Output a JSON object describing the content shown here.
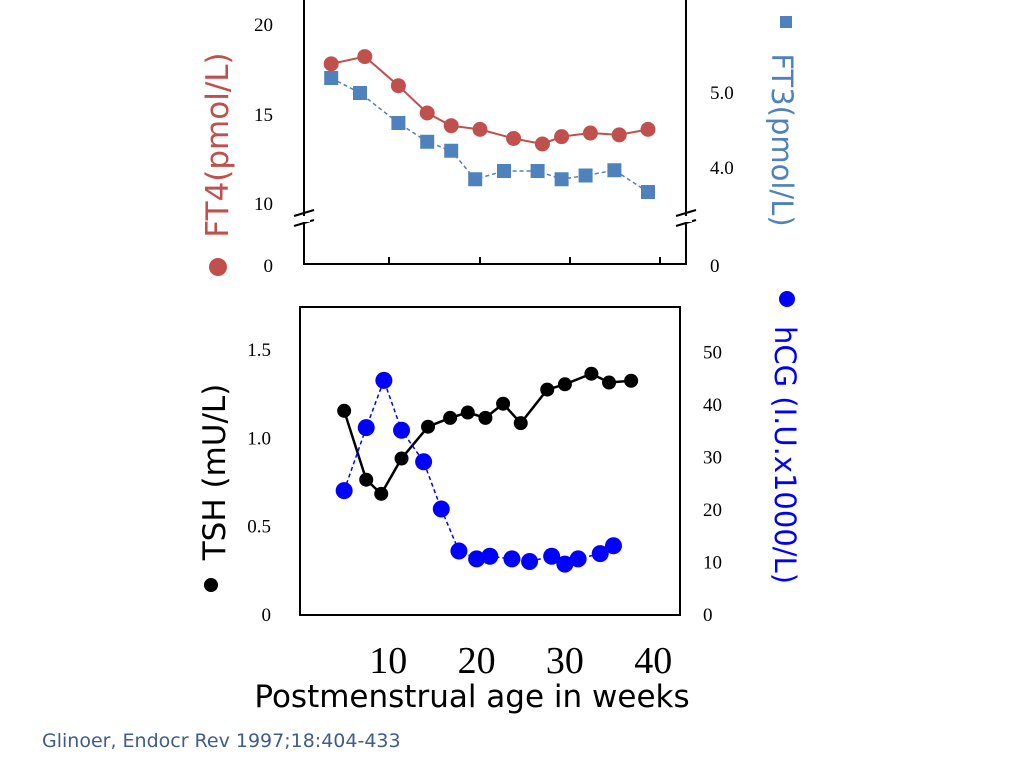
{
  "citation": "Glinoer, Endocr Rev 1997;18:404-433",
  "colors": {
    "ft4": "#c0504d",
    "ft3": "#4f81bd",
    "tsh": "#000000",
    "hcg": "#0000ff",
    "axis": "#000000",
    "citation": "#3f5c8c"
  },
  "chart_data": [
    {
      "type": "line",
      "panel": "top",
      "left_axis": {
        "label": "FT4(pmol/L)",
        "ticks": [
          "0",
          "10",
          "15",
          "20"
        ],
        "break": true
      },
      "right_axis": {
        "label": "FT3(pmol/L)",
        "ticks": [
          "0",
          "4.0",
          "5.0"
        ],
        "break": true
      },
      "series": [
        {
          "name": "FT4(pmol/L)",
          "marker": "circle",
          "line": "solid",
          "axis": "left",
          "x": [
            6,
            9.5,
            13,
            16,
            18.5,
            21.5,
            25,
            28,
            30,
            33,
            36,
            39
          ],
          "values": [
            17.7,
            18.1,
            16.5,
            15.0,
            14.3,
            14.1,
            13.6,
            13.3,
            13.7,
            13.9,
            13.8,
            14.1
          ]
        },
        {
          "name": "FT3(pmol/L)",
          "marker": "square",
          "line": "dashed",
          "axis": "right",
          "x": [
            6,
            9,
            13,
            16,
            18.5,
            21,
            24,
            27.5,
            30,
            32.5,
            35.5,
            39
          ],
          "values": [
            5.2,
            5.0,
            4.6,
            4.35,
            4.23,
            3.85,
            3.96,
            3.96,
            3.85,
            3.9,
            3.97,
            3.68
          ]
        }
      ]
    },
    {
      "type": "line",
      "panel": "bottom",
      "left_axis": {
        "label": "TSH (mU/L)",
        "ticks": [
          "0",
          "0.5",
          "1.0",
          "1.5"
        ]
      },
      "right_axis": {
        "label": "hCG (I.U.x1000/L)",
        "ticks": [
          "0",
          "10",
          "20",
          "30",
          "40",
          "50"
        ]
      },
      "xlabel": "Postmenstrual age in weeks",
      "xticks": [
        "10",
        "20",
        "30",
        "40"
      ],
      "series": [
        {
          "name": "TSH (mU/L)",
          "marker": "circle",
          "line": "solid",
          "axis": "left",
          "x": [
            5,
            7.5,
            9.2,
            11.5,
            14.5,
            17,
            19,
            21,
            23,
            25,
            28,
            30,
            33,
            35,
            37.5
          ],
          "values": [
            1.15,
            0.76,
            0.68,
            0.88,
            1.06,
            1.11,
            1.14,
            1.11,
            1.19,
            1.08,
            1.27,
            1.3,
            1.36,
            1.31,
            1.32
          ]
        },
        {
          "name": "hCG (I.U.x1000/L)",
          "marker": "circle",
          "line": "dashed",
          "axis": "right",
          "x": [
            5,
            7.5,
            9.5,
            11.5,
            14,
            16,
            18,
            20,
            21.5,
            24,
            26,
            28.5,
            30,
            31.5,
            34,
            35.5
          ],
          "values": [
            23.5,
            35.5,
            44.5,
            35.0,
            29.0,
            20.0,
            12.0,
            10.5,
            11.0,
            10.5,
            10.0,
            11.0,
            9.5,
            10.5,
            11.5,
            13.0
          ]
        }
      ]
    }
  ]
}
